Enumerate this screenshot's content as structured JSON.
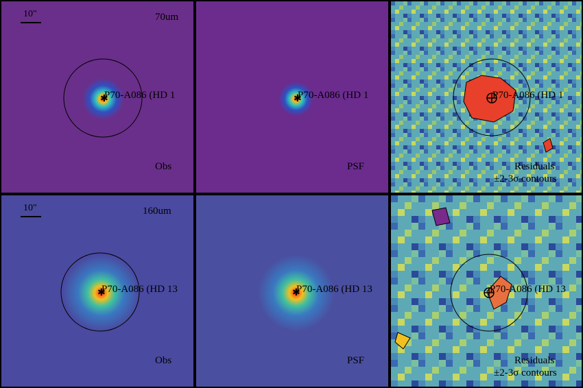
{
  "rows": [
    {
      "band": "70um",
      "scale_label": "10\"",
      "obs": {
        "source": "P70-A086 (HD 1",
        "caption": "Obs"
      },
      "psf": {
        "source": "P70-A086 (HD 1",
        "caption": "PSF"
      },
      "residuals": {
        "source": "P70-A086 (HD 1",
        "caption_line1": "Residuals",
        "caption_line2": "±2-3σ contours"
      }
    },
    {
      "band": "160um",
      "scale_label": "10\"",
      "obs": {
        "source": "P70-A086 (HD 13",
        "caption": "Obs"
      },
      "psf": {
        "source": "P70-A086 (HD 13",
        "caption": "PSF"
      },
      "residuals": {
        "source": "P70-A086 (HD 13",
        "caption_line1": "Residuals",
        "caption_line2": "±2-3σ contours"
      }
    }
  ],
  "colors": {
    "obs70_bg": "#6a2f8a",
    "psf_bg": "#6b2c8e",
    "obs160_bg": "#4a4aa0",
    "psf160_bg": "#4a4fa0",
    "residual_bg": "#5aa8b8",
    "peak": "#e8402a"
  }
}
